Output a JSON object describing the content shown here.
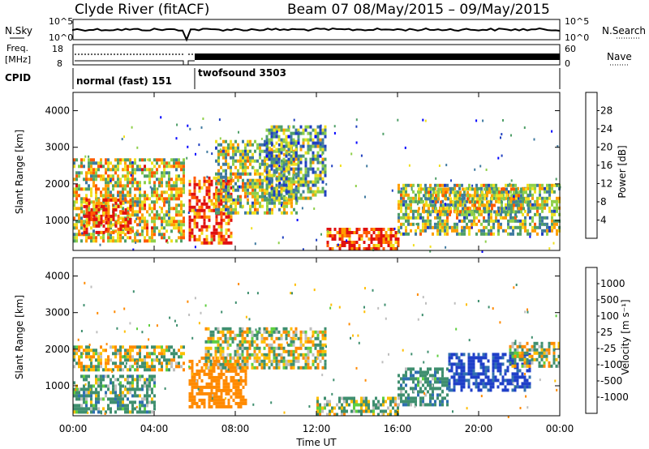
{
  "header": {
    "station": "Clyde River (fitACF)",
    "beam_date": "Beam 07  08/May/2015 – 09/May/2015"
  },
  "strip": {
    "nsky_label": "N.Sky",
    "nsearch_label": "N.Search",
    "count_tick_top": "10^5",
    "count_tick_bottom": "10^0",
    "freq_label_line1": "Freq.",
    "freq_label_line2": "[MHz]",
    "freq_ticks": [
      "18",
      "8"
    ],
    "nave_label": "Nave",
    "nave_ticks": [
      "60",
      "0"
    ],
    "cpid_label": "CPID",
    "cpid_segments": [
      {
        "name": "normal (fast) 151",
        "start_hour": 0.0,
        "end_hour": 5.6
      },
      {
        "name": "twofsound 3503",
        "start_hour": 5.6,
        "end_hour": 24.0
      }
    ]
  },
  "colors": {
    "power_scale": [
      "#0000ff",
      "#2040c0",
      "#3f7aa0",
      "#4f9f68",
      "#8fd04a",
      "#f0e020",
      "#ff9e00",
      "#ff5a00",
      "#e01010"
    ],
    "velocity_scale": [
      "#1f3fc8",
      "#2f6fb0",
      "#3f8f6f",
      "#5fcf3f",
      "#bebebe",
      "#ffbe00",
      "#ff8a00",
      "#ff4a00",
      "#e01010"
    ],
    "grey": "#bebebe"
  },
  "chart_data": [
    {
      "type": "heatmap",
      "panel": "power",
      "ylabel": "Slant Range [km]",
      "ylim": [
        180,
        4500
      ],
      "yticks": [
        "1000",
        "2000",
        "3000",
        "4000"
      ],
      "xlim_hours": [
        0,
        24
      ],
      "colorbar_label": "Power [dB]",
      "colorbar_ticks": [
        "4",
        "8",
        "12",
        "16",
        "20",
        "24",
        "28"
      ],
      "colorbar_range": [
        0,
        32
      ],
      "echo_regions": [
        {
          "t0": 0.0,
          "t1": 5.5,
          "r0": 450,
          "r1": 2700,
          "level": 0.6
        },
        {
          "t0": 0.5,
          "t1": 2.8,
          "r0": 700,
          "r1": 1600,
          "level": 0.85
        },
        {
          "t0": 5.7,
          "t1": 7.8,
          "r0": 350,
          "r1": 2200,
          "level": 0.85
        },
        {
          "t0": 7.0,
          "t1": 11.0,
          "r0": 1200,
          "r1": 3200,
          "level": 0.5
        },
        {
          "t0": 9.5,
          "t1": 12.5,
          "r0": 1600,
          "r1": 3600,
          "level": 0.4
        },
        {
          "t0": 12.5,
          "t1": 16.0,
          "r0": 250,
          "r1": 800,
          "level": 0.9
        },
        {
          "t0": 16.0,
          "t1": 24.0,
          "r0": 600,
          "r1": 2000,
          "level": 0.5
        },
        {
          "t0": 17.0,
          "t1": 22.5,
          "r0": 1200,
          "r1": 1900,
          "level": 0.55
        }
      ]
    },
    {
      "type": "heatmap",
      "panel": "velocity",
      "ylabel": "Slant Range [km]",
      "ylim": [
        180,
        4500
      ],
      "yticks": [
        "1000",
        "2000",
        "3000",
        "4000"
      ],
      "xlim_hours": [
        0,
        24
      ],
      "xlabel": "Time UT",
      "xticks": [
        "00:00",
        "04:00",
        "08:00",
        "12:00",
        "16:00",
        "20:00",
        "00:00"
      ],
      "colorbar_label": "Velocity [m s⁻¹]",
      "colorbar_ticks": [
        "1000",
        "500",
        "100",
        "25",
        "-25",
        "-100",
        "-500",
        "-1000"
      ],
      "echo_regions": [
        {
          "t0": 0.0,
          "t1": 5.5,
          "r0": 1400,
          "r1": 2100,
          "vel": 0
        },
        {
          "t0": 0.0,
          "t1": 4.0,
          "r0": 300,
          "r1": 1300,
          "vel": 150
        },
        {
          "t0": 5.7,
          "t1": 8.5,
          "r0": 400,
          "r1": 1800,
          "vel": -300
        },
        {
          "t0": 6.5,
          "t1": 12.5,
          "r0": 1500,
          "r1": 2600,
          "vel": 0
        },
        {
          "t0": 12.0,
          "t1": 16.0,
          "r0": 250,
          "r1": 700,
          "vel": 80
        },
        {
          "t0": 16.0,
          "t1": 18.5,
          "r0": 500,
          "r1": 1500,
          "vel": 200
        },
        {
          "t0": 18.5,
          "t1": 22.5,
          "r0": 900,
          "r1": 1900,
          "vel": 800
        },
        {
          "t0": 21.5,
          "t1": 24.0,
          "r0": 1500,
          "r1": 2200,
          "vel": 0
        }
      ]
    }
  ]
}
